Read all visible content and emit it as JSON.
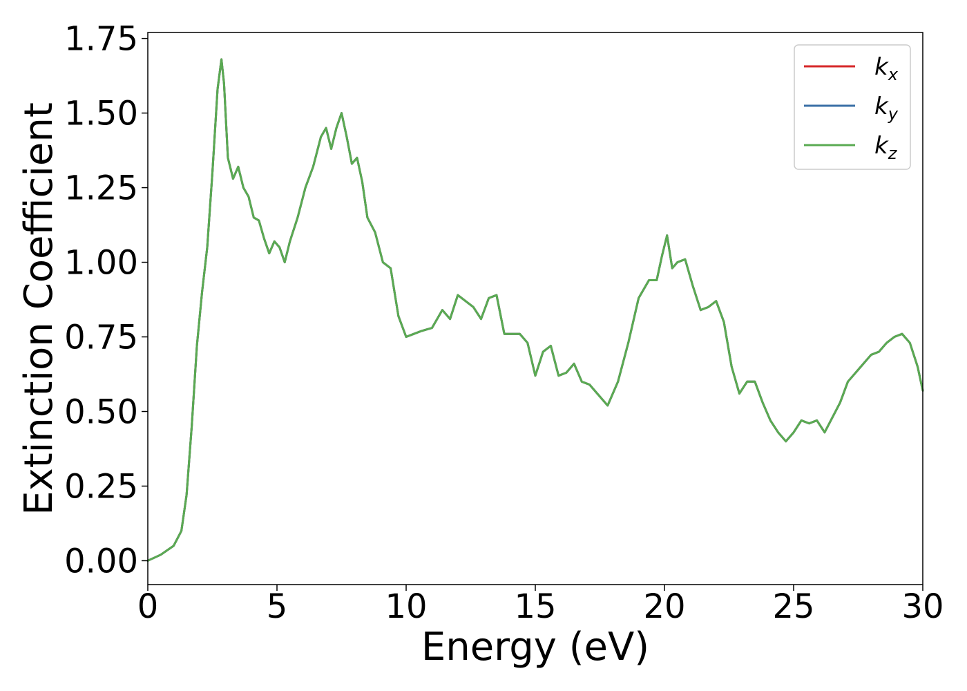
{
  "chart_data": {
    "type": "line",
    "title": "",
    "xlabel": "Energy (eV)",
    "ylabel": "Extinction Coefficient",
    "xlim": [
      0,
      30
    ],
    "ylim": [
      -0.08,
      1.77
    ],
    "xticks": [
      0,
      5,
      10,
      15,
      20,
      25,
      30
    ],
    "xtick_labels": [
      "0",
      "5",
      "10",
      "15",
      "20",
      "25",
      "30"
    ],
    "yticks": [
      0.0,
      0.25,
      0.5,
      0.75,
      1.0,
      1.25,
      1.5,
      1.75
    ],
    "ytick_labels": [
      "0.00",
      "0.25",
      "0.50",
      "0.75",
      "1.00",
      "1.25",
      "1.50",
      "1.75"
    ],
    "grid": false,
    "legend_position": "top-right",
    "x": [
      0.0,
      0.5,
      1.0,
      1.3,
      1.5,
      1.7,
      1.9,
      2.1,
      2.3,
      2.5,
      2.7,
      2.85,
      2.95,
      3.1,
      3.3,
      3.5,
      3.7,
      3.9,
      4.1,
      4.3,
      4.5,
      4.7,
      4.9,
      5.1,
      5.3,
      5.5,
      5.8,
      6.1,
      6.4,
      6.7,
      6.9,
      7.1,
      7.3,
      7.5,
      7.7,
      7.9,
      8.1,
      8.3,
      8.5,
      8.8,
      9.1,
      9.4,
      9.7,
      10.0,
      10.3,
      10.6,
      11.0,
      11.4,
      11.7,
      12.0,
      12.3,
      12.6,
      12.9,
      13.2,
      13.5,
      13.8,
      14.1,
      14.4,
      14.7,
      15.0,
      15.3,
      15.6,
      15.9,
      16.2,
      16.5,
      16.8,
      17.1,
      17.4,
      17.8,
      18.2,
      18.6,
      19.0,
      19.4,
      19.7,
      19.9,
      20.1,
      20.3,
      20.5,
      20.8,
      21.1,
      21.4,
      21.7,
      22.0,
      22.3,
      22.6,
      22.9,
      23.2,
      23.5,
      23.8,
      24.1,
      24.4,
      24.7,
      25.0,
      25.3,
      25.6,
      25.9,
      26.2,
      26.5,
      26.8,
      27.1,
      27.4,
      27.7,
      28.0,
      28.3,
      28.6,
      28.9,
      29.2,
      29.5,
      29.8,
      30.0
    ],
    "series": [
      {
        "name": "k_x",
        "color": "#d62728",
        "values": [
          0.0,
          0.02,
          0.05,
          0.1,
          0.22,
          0.45,
          0.72,
          0.9,
          1.05,
          1.3,
          1.58,
          1.68,
          1.6,
          1.35,
          1.28,
          1.32,
          1.25,
          1.22,
          1.15,
          1.14,
          1.08,
          1.03,
          1.07,
          1.05,
          1.0,
          1.07,
          1.15,
          1.25,
          1.32,
          1.42,
          1.45,
          1.38,
          1.45,
          1.5,
          1.42,
          1.33,
          1.35,
          1.27,
          1.15,
          1.1,
          1.0,
          0.98,
          0.82,
          0.75,
          0.76,
          0.77,
          0.78,
          0.84,
          0.81,
          0.89,
          0.87,
          0.85,
          0.81,
          0.88,
          0.89,
          0.76,
          0.76,
          0.76,
          0.73,
          0.62,
          0.7,
          0.72,
          0.62,
          0.63,
          0.66,
          0.6,
          0.59,
          0.56,
          0.52,
          0.6,
          0.73,
          0.88,
          0.94,
          0.94,
          1.02,
          1.09,
          0.98,
          1.0,
          1.01,
          0.92,
          0.84,
          0.85,
          0.87,
          0.8,
          0.65,
          0.56,
          0.6,
          0.6,
          0.53,
          0.47,
          0.43,
          0.4,
          0.43,
          0.47,
          0.46,
          0.47,
          0.43,
          0.48,
          0.53,
          0.6,
          0.63,
          0.66,
          0.69,
          0.7,
          0.73,
          0.75,
          0.76,
          0.73,
          0.65,
          0.57
        ]
      },
      {
        "name": "k_y",
        "color": "#3a6fa6",
        "values": [
          0.0,
          0.02,
          0.05,
          0.1,
          0.22,
          0.45,
          0.72,
          0.9,
          1.05,
          1.3,
          1.58,
          1.68,
          1.6,
          1.35,
          1.28,
          1.32,
          1.25,
          1.22,
          1.15,
          1.14,
          1.08,
          1.03,
          1.07,
          1.05,
          1.0,
          1.07,
          1.15,
          1.25,
          1.32,
          1.42,
          1.45,
          1.38,
          1.45,
          1.5,
          1.42,
          1.33,
          1.35,
          1.27,
          1.15,
          1.1,
          1.0,
          0.98,
          0.82,
          0.75,
          0.76,
          0.77,
          0.78,
          0.84,
          0.81,
          0.89,
          0.87,
          0.85,
          0.81,
          0.88,
          0.89,
          0.76,
          0.76,
          0.76,
          0.73,
          0.62,
          0.7,
          0.72,
          0.62,
          0.63,
          0.66,
          0.6,
          0.59,
          0.56,
          0.52,
          0.6,
          0.73,
          0.88,
          0.94,
          0.94,
          1.02,
          1.09,
          0.98,
          1.0,
          1.01,
          0.92,
          0.84,
          0.85,
          0.87,
          0.8,
          0.65,
          0.56,
          0.6,
          0.6,
          0.53,
          0.47,
          0.43,
          0.4,
          0.43,
          0.47,
          0.46,
          0.47,
          0.43,
          0.48,
          0.53,
          0.6,
          0.63,
          0.66,
          0.69,
          0.7,
          0.73,
          0.75,
          0.76,
          0.73,
          0.65,
          0.57
        ]
      },
      {
        "name": "k_z",
        "color": "#5aaa52",
        "values": [
          0.0,
          0.02,
          0.05,
          0.1,
          0.22,
          0.45,
          0.72,
          0.9,
          1.05,
          1.3,
          1.58,
          1.68,
          1.6,
          1.35,
          1.28,
          1.32,
          1.25,
          1.22,
          1.15,
          1.14,
          1.08,
          1.03,
          1.07,
          1.05,
          1.0,
          1.07,
          1.15,
          1.25,
          1.32,
          1.42,
          1.45,
          1.38,
          1.45,
          1.5,
          1.42,
          1.33,
          1.35,
          1.27,
          1.15,
          1.1,
          1.0,
          0.98,
          0.82,
          0.75,
          0.76,
          0.77,
          0.78,
          0.84,
          0.81,
          0.89,
          0.87,
          0.85,
          0.81,
          0.88,
          0.89,
          0.76,
          0.76,
          0.76,
          0.73,
          0.62,
          0.7,
          0.72,
          0.62,
          0.63,
          0.66,
          0.6,
          0.59,
          0.56,
          0.52,
          0.6,
          0.73,
          0.88,
          0.94,
          0.94,
          1.02,
          1.09,
          0.98,
          1.0,
          1.01,
          0.92,
          0.84,
          0.85,
          0.87,
          0.8,
          0.65,
          0.56,
          0.6,
          0.6,
          0.53,
          0.47,
          0.43,
          0.4,
          0.43,
          0.47,
          0.46,
          0.47,
          0.43,
          0.48,
          0.53,
          0.6,
          0.63,
          0.66,
          0.69,
          0.7,
          0.73,
          0.75,
          0.76,
          0.73,
          0.65,
          0.57
        ]
      }
    ],
    "legend": [
      {
        "base": "k",
        "sub": "x",
        "color": "#d62728"
      },
      {
        "base": "k",
        "sub": "y",
        "color": "#3a6fa6"
      },
      {
        "base": "k",
        "sub": "z",
        "color": "#5aaa52"
      }
    ]
  }
}
